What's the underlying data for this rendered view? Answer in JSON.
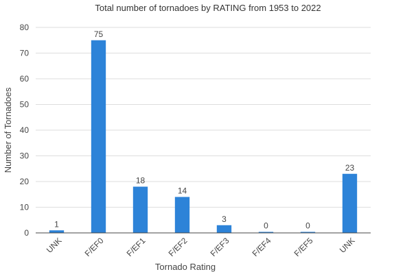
{
  "chart_data": {
    "type": "bar",
    "title": "Total number of tornadoes by RATING from 1953 to 2022",
    "xlabel": "Tornado Rating",
    "ylabel": "Number of Tornadoes",
    "categories": [
      "UNK",
      "F/EF0",
      "F/EF1",
      "F/EF2",
      "F/EF3",
      "F/EF4",
      "F/EF5",
      "UNK"
    ],
    "values": [
      1,
      75,
      18,
      14,
      3,
      0,
      0,
      23
    ],
    "ylim": [
      0,
      80
    ],
    "yticks": [
      0,
      10,
      20,
      30,
      40,
      50,
      60,
      70,
      80
    ],
    "grid": true,
    "legend": "none",
    "colors": {
      "bar": "#2d83d8",
      "grid": "#dddddd",
      "axis": "#444444"
    }
  }
}
